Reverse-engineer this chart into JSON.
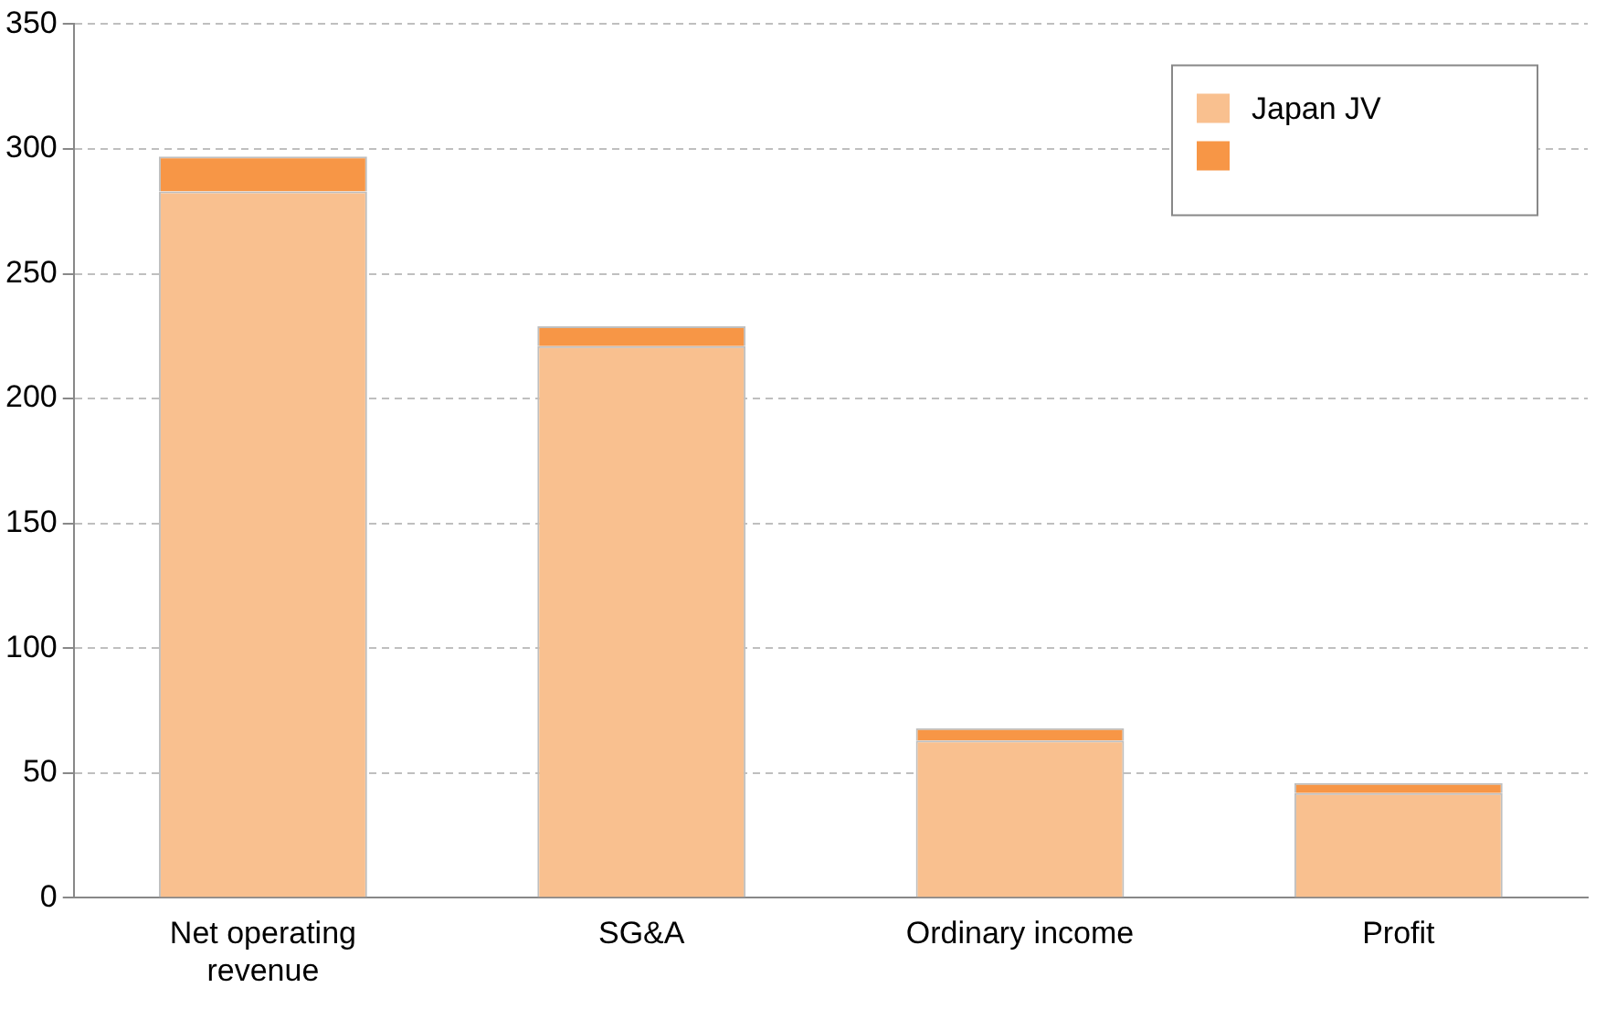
{
  "chart_data": {
    "type": "bar",
    "stacked": true,
    "categories": [
      "Net operating revenue",
      "SG&A",
      "Ordinary income",
      "Profit"
    ],
    "series": [
      {
        "name": "Japan JV",
        "color": "#f9c08f",
        "values": [
          283,
          221,
          63,
          42
        ]
      },
      {
        "color": "#f79646",
        "values": [
          14,
          8,
          5,
          4
        ]
      }
    ],
    "ylim": [
      0,
      350
    ],
    "yticks": [
      0,
      50,
      100,
      150,
      200,
      250,
      300,
      350
    ],
    "grid": "y",
    "legend": "top right"
  }
}
